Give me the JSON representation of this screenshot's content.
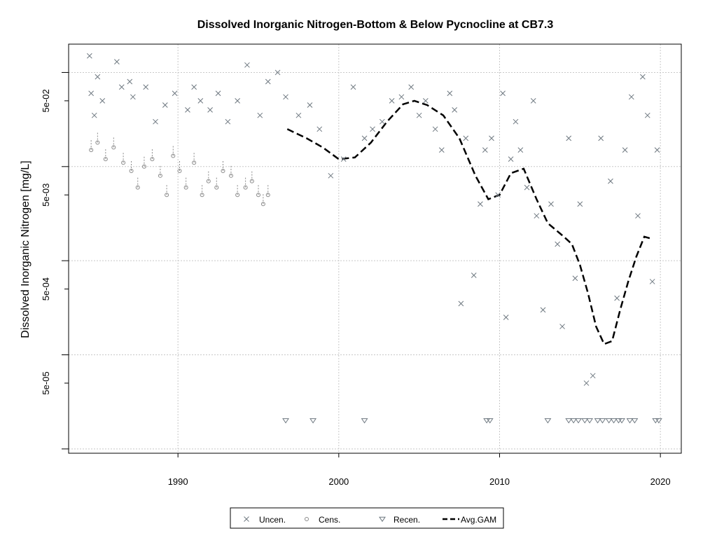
{
  "chart_data": {
    "type": "scatter",
    "title": "Dissolved Inorganic Nitrogen-Bottom & Below Pycnocline at CB7.3",
    "ylabel": "Dissolved Inorganic Nitrogen [mg/L]",
    "xlabel": "",
    "xlim": [
      1983.2,
      2021.3
    ],
    "ylim": [
      9e-06,
      0.2
    ],
    "y_scale": "log",
    "grid": true,
    "legend_position": "bottom",
    "x_ticks": [
      1990,
      2000,
      2010,
      2020
    ],
    "x_tick_labels": [
      "1990",
      "2000",
      "2010",
      "2020"
    ],
    "y_ticks": [
      5e-05,
      0.0005,
      0.005,
      0.05
    ],
    "y_tick_labels": [
      "5e-05",
      "5e-04",
      "5e-03",
      "5e-02"
    ],
    "legend": [
      {
        "label": "Uncen.",
        "symbol": "x"
      },
      {
        "label": "Cens.",
        "symbol": "circle"
      },
      {
        "label": "Recen.",
        "symbol": "triangle-down"
      },
      {
        "label": "Avg.GAM",
        "symbol": "dashed-line"
      }
    ],
    "colors": {
      "points": "#6e7880",
      "censored": "#8a8a8a",
      "gam": "#000000",
      "grid": "#c8c8c8"
    },
    "series": [
      {
        "name": "Uncen.",
        "marker": "x",
        "x": [
          1984.5,
          1984.6,
          1984.8,
          1985.0,
          1985.3,
          1986.2,
          1986.5,
          1987.0,
          1987.2,
          1988.0,
          1988.6,
          1989.2,
          1989.8,
          1990.6,
          1991.0,
          1991.4,
          1992.0,
          1992.5,
          1993.1,
          1993.7,
          1994.3,
          1995.1,
          1995.6,
          1996.2,
          1996.7,
          1997.5,
          1998.2,
          1998.8,
          1999.5,
          2000.3,
          2000.9,
          2001.6,
          2002.1,
          2002.7,
          2003.3,
          2003.9,
          2004.5,
          2005.0,
          2005.4,
          2006.0,
          2006.4,
          2006.9,
          2007.2,
          2007.6,
          2007.9,
          2008.4,
          2008.8,
          2009.1,
          2009.5,
          2009.9,
          2010.2,
          2010.4,
          2010.7,
          2011.0,
          2011.3,
          2011.7,
          2012.1,
          2012.3,
          2012.7,
          2013.2,
          2013.6,
          2013.9,
          2014.3,
          2014.7,
          2015.0,
          2015.4,
          2015.8,
          2016.3,
          2016.9,
          2017.3,
          2017.8,
          2018.2,
          2018.6,
          2018.9,
          2019.2,
          2019.5,
          2019.8
        ],
        "y": [
          0.15,
          0.06,
          0.035,
          0.09,
          0.05,
          0.13,
          0.07,
          0.08,
          0.055,
          0.07,
          0.03,
          0.045,
          0.06,
          0.04,
          0.07,
          0.05,
          0.04,
          0.06,
          0.03,
          0.05,
          0.12,
          0.035,
          0.08,
          0.1,
          0.055,
          0.035,
          0.045,
          0.025,
          0.008,
          0.012,
          0.07,
          0.02,
          0.025,
          0.03,
          0.05,
          0.055,
          0.07,
          0.035,
          0.05,
          0.025,
          0.015,
          0.06,
          0.04,
          0.00035,
          0.02,
          0.0007,
          0.004,
          0.015,
          0.02,
          0.005,
          0.06,
          0.00025,
          0.012,
          0.03,
          0.015,
          0.006,
          0.05,
          0.003,
          0.0003,
          0.004,
          0.0015,
          0.0002,
          0.02,
          0.00065,
          0.004,
          5e-05,
          6e-05,
          0.02,
          0.007,
          0.0004,
          0.015,
          0.055,
          0.003,
          0.09,
          0.035,
          0.0006,
          0.015
        ]
      },
      {
        "name": "Cens.",
        "marker": "circle",
        "x": [
          1984.6,
          1985.0,
          1985.5,
          1986.0,
          1986.6,
          1987.1,
          1987.5,
          1987.9,
          1988.4,
          1988.9,
          1989.3,
          1989.7,
          1990.1,
          1990.5,
          1991.0,
          1991.5,
          1991.9,
          1992.4,
          1992.8,
          1993.3,
          1993.7,
          1994.2,
          1994.6,
          1995.0,
          1995.3,
          1995.6
        ],
        "y": [
          0.015,
          0.018,
          0.012,
          0.016,
          0.011,
          0.009,
          0.006,
          0.01,
          0.012,
          0.008,
          0.005,
          0.013,
          0.009,
          0.006,
          0.011,
          0.005,
          0.007,
          0.006,
          0.009,
          0.008,
          0.005,
          0.006,
          0.007,
          0.005,
          0.004,
          0.005
        ]
      },
      {
        "name": "Recen.",
        "marker": "triangle-down",
        "x": [
          1996.7,
          1998.4,
          2001.6,
          2009.2,
          2009.4,
          2013.0,
          2014.3,
          2014.6,
          2014.9,
          2015.3,
          2015.6,
          2016.1,
          2016.4,
          2016.8,
          2017.1,
          2017.4,
          2017.6,
          2018.1,
          2018.4,
          2019.7,
          2019.9
        ],
        "y": [
          2e-05,
          2e-05,
          2e-05,
          2e-05,
          2e-05,
          2e-05,
          2e-05,
          2e-05,
          2e-05,
          2e-05,
          2e-05,
          2e-05,
          2e-05,
          2e-05,
          2e-05,
          2e-05,
          2e-05,
          2e-05,
          2e-05,
          2e-05,
          2e-05
        ]
      },
      {
        "name": "Avg.GAM",
        "marker": "dashed-line",
        "x": [
          1996.8,
          1998.0,
          1999.0,
          2000.0,
          2001.0,
          2002.0,
          2003.0,
          2004.0,
          2004.7,
          2005.5,
          2006.5,
          2007.5,
          2008.5,
          2009.3,
          2010.0,
          2010.7,
          2011.5,
          2012.3,
          2013.0,
          2014.0,
          2014.5,
          2015.0,
          2015.5,
          2016.0,
          2016.5,
          2017.0,
          2017.5,
          2018.0,
          2018.5,
          2019.0,
          2019.5
        ],
        "y": [
          0.025,
          0.02,
          0.016,
          0.012,
          0.0125,
          0.018,
          0.03,
          0.046,
          0.05,
          0.045,
          0.035,
          0.02,
          0.008,
          0.0045,
          0.005,
          0.0085,
          0.0095,
          0.0045,
          0.0025,
          0.0018,
          0.0015,
          0.0009,
          0.00045,
          0.0002,
          0.00013,
          0.00014,
          0.0003,
          0.0006,
          0.0011,
          0.0018,
          0.0017
        ]
      }
    ]
  }
}
